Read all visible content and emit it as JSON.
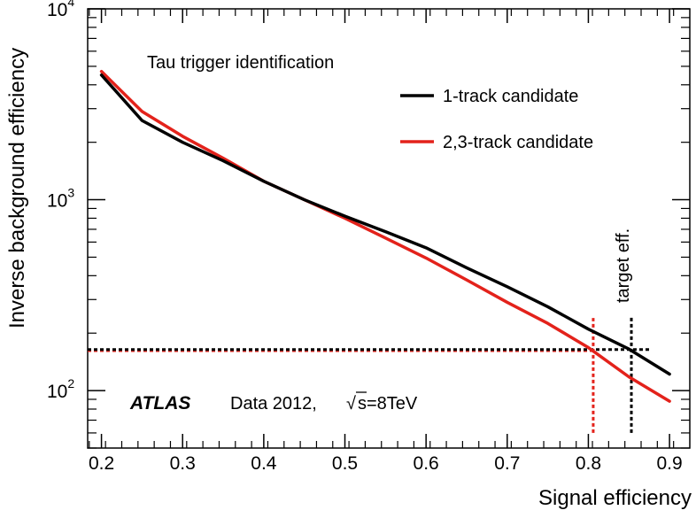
{
  "chart_data": {
    "type": "line",
    "title": "Tau trigger identification",
    "xlabel": "Signal efficiency",
    "ylabel": "Inverse background efficiency",
    "xlim": [
      0.183,
      0.925
    ],
    "ylim": [
      50,
      10000
    ],
    "yscale": "log",
    "grid": false,
    "legend_position": "top-right",
    "x_ticks": [
      0.2,
      0.3,
      0.4,
      0.5,
      0.6,
      0.7,
      0.8,
      0.9
    ],
    "x_tick_labels": [
      "0.2",
      "0.3",
      "0.4",
      "0.5",
      "0.6",
      "0.7",
      "0.8",
      "0.9"
    ],
    "y_ticks": [
      {
        "value": 100,
        "base": "10",
        "exp": "2"
      },
      {
        "value": 1000,
        "base": "10",
        "exp": "3"
      },
      {
        "value": 10000,
        "base": "10",
        "exp": "4"
      }
    ],
    "series": [
      {
        "name": "1-track candidate",
        "color": "#000000",
        "x": [
          0.2,
          0.25,
          0.3,
          0.35,
          0.4,
          0.45,
          0.5,
          0.55,
          0.6,
          0.65,
          0.7,
          0.75,
          0.8,
          0.85,
          0.9
        ],
        "y": [
          4500,
          2600,
          2000,
          1600,
          1250,
          1000,
          820,
          680,
          560,
          440,
          350,
          275,
          210,
          165,
          122
        ]
      },
      {
        "name": "2,3-track candidate",
        "color": "#e3221b",
        "x": [
          0.2,
          0.25,
          0.3,
          0.35,
          0.4,
          0.45,
          0.5,
          0.55,
          0.6,
          0.65,
          0.7,
          0.75,
          0.8,
          0.85,
          0.9
        ],
        "y": [
          4700,
          2900,
          2150,
          1650,
          1250,
          1000,
          800,
          630,
          495,
          380,
          290,
          225,
          168,
          118,
          88
        ]
      }
    ],
    "reference_lines": [
      {
        "kind": "horizontal",
        "value": 162,
        "color": "#e3221b",
        "style": "dotted",
        "x_from": 0.183,
        "x_to": 0.806
      },
      {
        "kind": "horizontal",
        "value": 164,
        "color": "#000000",
        "style": "dotted",
        "x_from": 0.183,
        "x_to": 0.875
      },
      {
        "kind": "vertical",
        "value": 0.806,
        "color": "#e3221b",
        "style": "dotted",
        "y_from": 60,
        "y_to": 240
      },
      {
        "kind": "vertical",
        "value": 0.853,
        "color": "#000000",
        "style": "dotted",
        "y_from": 60,
        "y_to": 245
      }
    ],
    "annotations": {
      "target": "target eff.",
      "experiment": "ATLAS",
      "data_label": "Data 2012,",
      "sqrt_symbol": "√",
      "energy_label": "s=8TeV"
    }
  }
}
